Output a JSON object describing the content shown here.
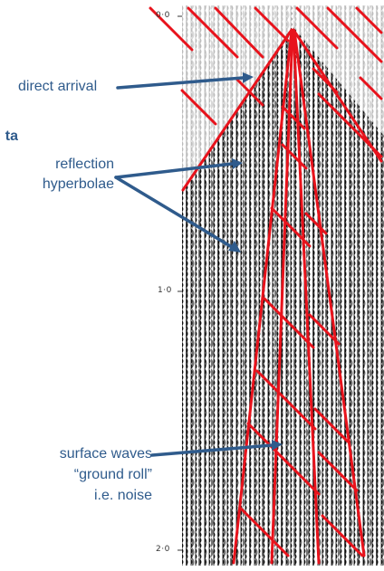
{
  "time_axis": {
    "ticks": [
      "0·0",
      "1·0",
      "2·0"
    ]
  },
  "annotations": {
    "direct_arrival": "direct arrival",
    "reflection_line1": "reflection",
    "reflection_line2": "hyperbolae",
    "surface_line1": "surface waves",
    "surface_line2": "“ground roll”",
    "surface_line3": "i.e. noise",
    "cut_off_text": "ta"
  },
  "colors": {
    "annotation_text": "#2f5b8c",
    "arrow": "#2f5b8c",
    "overlay_lines": "#e8131c",
    "seismic_trace": "#111111"
  }
}
